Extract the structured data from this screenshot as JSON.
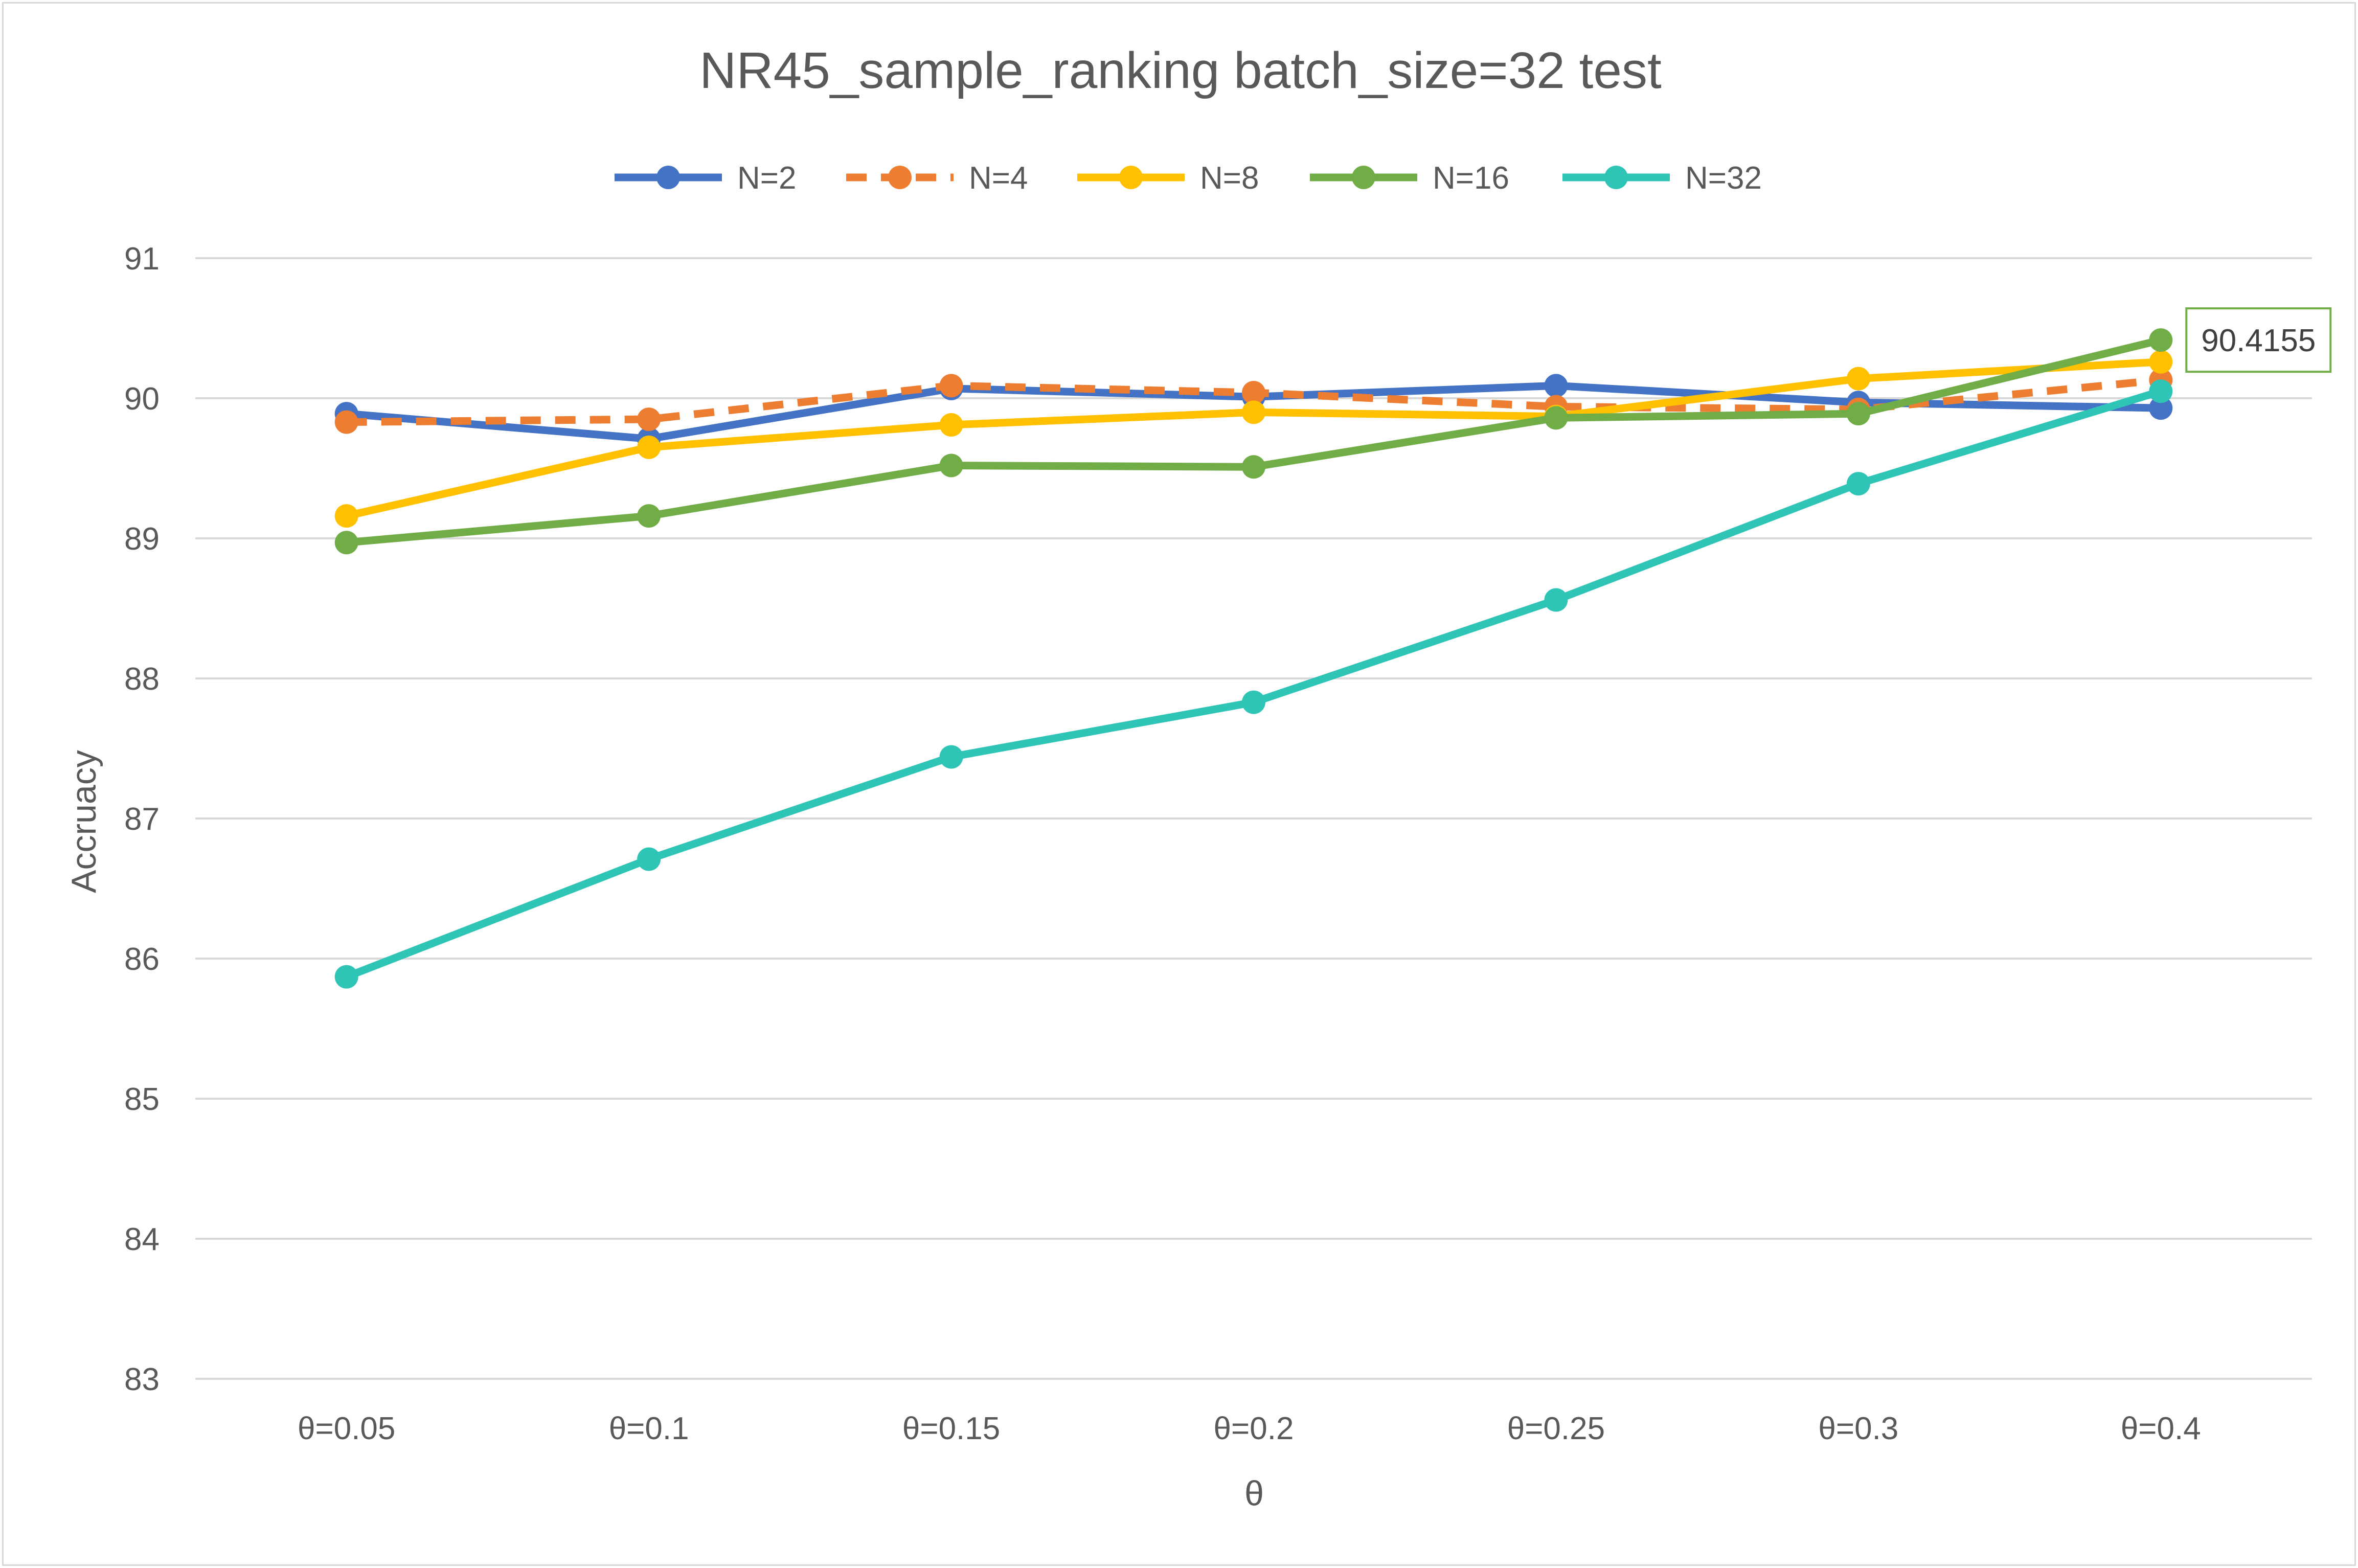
{
  "chart_data": {
    "type": "line",
    "title": "NR45_sample_ranking batch_size=32  test",
    "xlabel": "θ",
    "ylabel": "Accruacy",
    "categories": [
      "θ=0.05",
      "θ=0.1",
      "θ=0.15",
      "θ=0.2",
      "θ=0.25",
      "θ=0.3",
      "θ=0.4"
    ],
    "ylim": [
      83,
      91
    ],
    "yticks": [
      83,
      84,
      85,
      86,
      87,
      88,
      89,
      90,
      91
    ],
    "grid": true,
    "legend_position": "top",
    "series": [
      {
        "name": "N=2",
        "color": "#4472c4",
        "dashed": false,
        "values": [
          89.89,
          89.71,
          90.07,
          90.01,
          90.09,
          89.97,
          89.93
        ]
      },
      {
        "name": "N=4",
        "color": "#ed7d31",
        "dashed": true,
        "values": [
          89.83,
          89.85,
          90.09,
          90.04,
          89.94,
          89.92,
          90.13
        ]
      },
      {
        "name": "N=8",
        "color": "#ffc000",
        "dashed": false,
        "values": [
          89.16,
          89.65,
          89.81,
          89.9,
          89.87,
          90.14,
          90.26
        ]
      },
      {
        "name": "N=16",
        "color": "#70ad47",
        "dashed": false,
        "values": [
          88.97,
          89.16,
          89.52,
          89.51,
          89.86,
          89.89,
          90.4155
        ]
      },
      {
        "name": "N=32",
        "color": "#2ec4b6",
        "dashed": false,
        "values": [
          85.87,
          86.71,
          87.44,
          87.83,
          88.56,
          89.39,
          90.05
        ]
      }
    ],
    "annotations": [
      {
        "text": "90.4155",
        "series": "N=16",
        "category": "θ=0.4",
        "border_color": "#70ad47"
      }
    ]
  }
}
